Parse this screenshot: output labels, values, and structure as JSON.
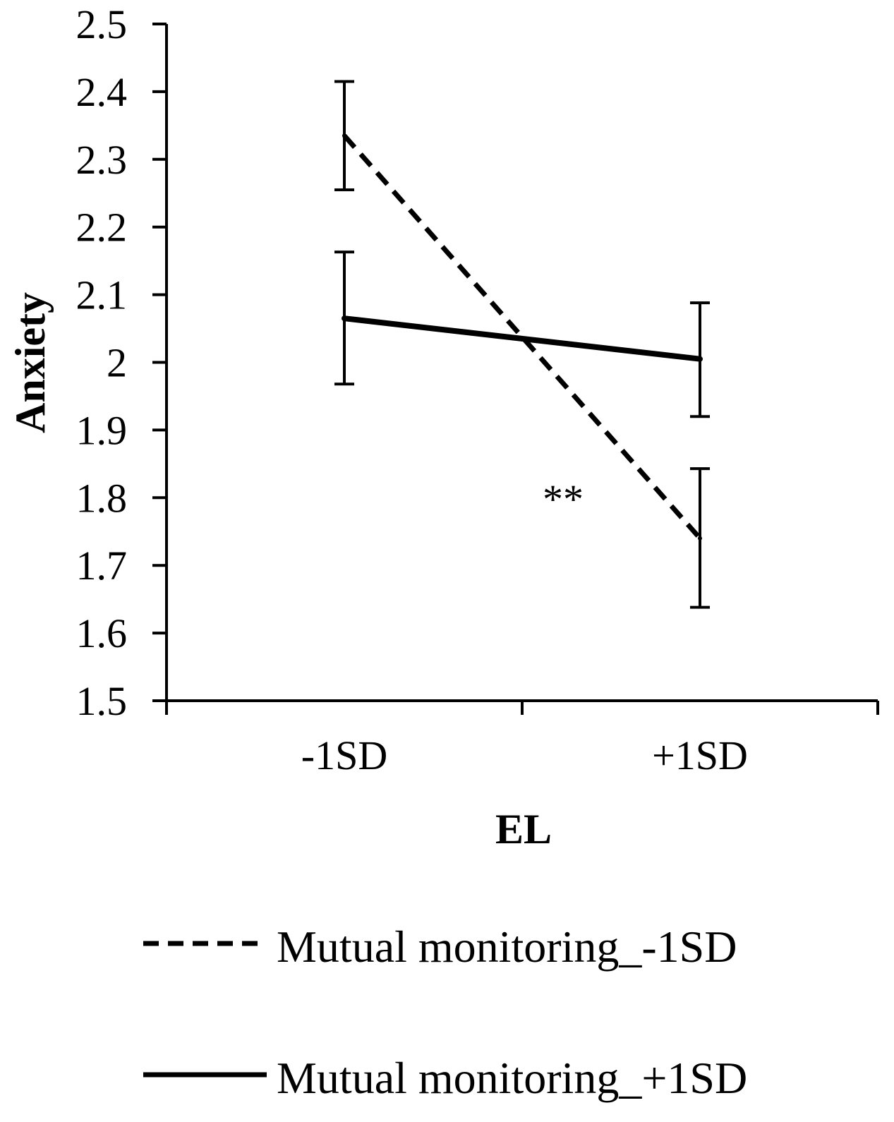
{
  "chart_data": {
    "type": "line",
    "categories": [
      "-1SD",
      "+1SD"
    ],
    "series": [
      {
        "name": "Mutual monitoring_-1SD",
        "values": [
          2.335,
          1.74
        ],
        "error_low": [
          2.255,
          1.638
        ],
        "error_high": [
          2.415,
          1.843
        ],
        "line_style": "dashed"
      },
      {
        "name": "Mutual monitoring_+1SD",
        "values": [
          2.065,
          2.005
        ],
        "error_low": [
          1.968,
          1.92
        ],
        "error_high": [
          2.163,
          2.088
        ],
        "line_style": "solid"
      }
    ],
    "xlabel": "EL",
    "ylabel": "Anxiety",
    "ylim": [
      1.5,
      2.5
    ],
    "yticks": [
      "1.5",
      "1.6",
      "1.7",
      "1.8",
      "1.9",
      "2",
      "2.1",
      "2.2",
      "2.3",
      "2.4",
      "2.5"
    ],
    "annotation": "**",
    "legend_position": "bottom",
    "grid": false,
    "colors": {
      "line": "#000000",
      "background": "#ffffff"
    }
  }
}
